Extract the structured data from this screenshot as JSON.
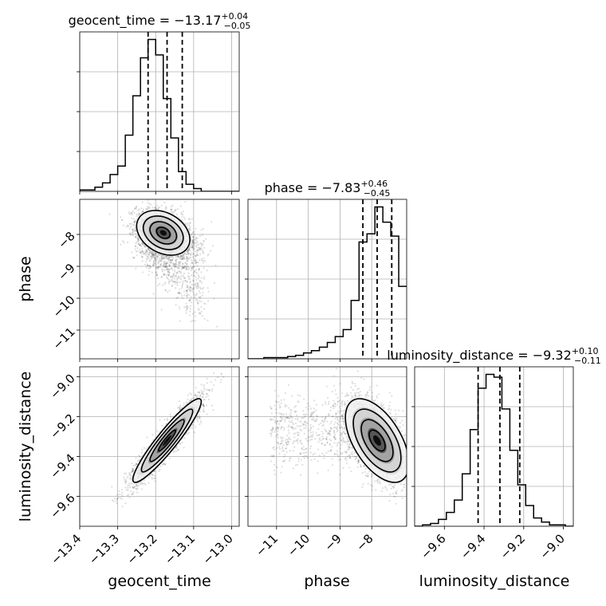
{
  "chart_data": {
    "type": "corner",
    "parameters": [
      {
        "name": "geocent_time",
        "label": "geocent_time",
        "median": "−13.17",
        "plus": "+0.04",
        "minus": "−0.05",
        "range": [
          -13.4,
          -12.98
        ],
        "ticks": [
          -13.4,
          -13.3,
          -13.2,
          -13.1,
          -13.0
        ],
        "tick_labels": [
          "−13.4",
          "−13.3",
          "−13.2",
          "−13.1",
          "−13.0"
        ],
        "quantiles": [
          -13.22,
          -13.17,
          -13.13
        ],
        "histogram": {
          "edges_start": -13.4,
          "bin_width": 0.02,
          "counts": [
            1,
            1,
            3,
            6,
            12,
            18,
            40,
            68,
            95,
            108,
            97,
            66,
            38,
            14,
            5,
            2,
            0,
            0,
            0,
            0,
            0
          ]
        }
      },
      {
        "name": "phase",
        "label": "phase",
        "median": "−7.83",
        "plus": "+0.46",
        "minus": "−0.45",
        "range": [
          -11.9,
          -6.9
        ],
        "ticks": [
          -11,
          -10,
          -9,
          -8
        ],
        "tick_labels": [
          "−11",
          "−10",
          "−9",
          "−8"
        ],
        "quantiles": [
          -8.28,
          -7.83,
          -7.37
        ],
        "histogram": {
          "edges_start": -11.9,
          "bin_width": 0.25,
          "counts": [
            0,
            0,
            1,
            1,
            1,
            2,
            3,
            5,
            7,
            10,
            14,
            19,
            25,
            50,
            100,
            107,
            130,
            117,
            105,
            62
          ]
        }
      },
      {
        "name": "luminosity_distance",
        "label": "luminosity_distance",
        "median": "−9.32",
        "plus": "+0.10",
        "minus": "−0.11",
        "range": [
          -9.75,
          -8.95
        ],
        "ticks": [
          -9.6,
          -9.4,
          -9.2,
          -9.0
        ],
        "tick_labels": [
          "−9.6",
          "−9.4",
          "−9.2",
          "−9.0"
        ],
        "quantiles": [
          -9.43,
          -9.32,
          -9.22
        ],
        "histogram": {
          "edges_start": -9.75,
          "bin_width": 0.04,
          "counts": [
            0,
            1,
            2,
            5,
            10,
            19,
            38,
            70,
            100,
            110,
            108,
            85,
            55,
            30,
            15,
            6,
            3,
            1,
            1,
            0
          ]
        }
      }
    ],
    "pairs": [
      {
        "x": "geocent_time",
        "y": "phase",
        "corr": -0.35,
        "note": "scatter tail towards higher geocent_time and lower phase"
      },
      {
        "x": "geocent_time",
        "y": "luminosity_distance",
        "corr": 0.92
      },
      {
        "x": "phase",
        "y": "luminosity_distance",
        "corr": -0.55
      }
    ],
    "layout": "3x3 lower-triangle corner plot",
    "grid": true,
    "contour_levels": [
      "0.5",
      "1.0",
      "1.5",
      "2.0 sigma"
    ]
  }
}
